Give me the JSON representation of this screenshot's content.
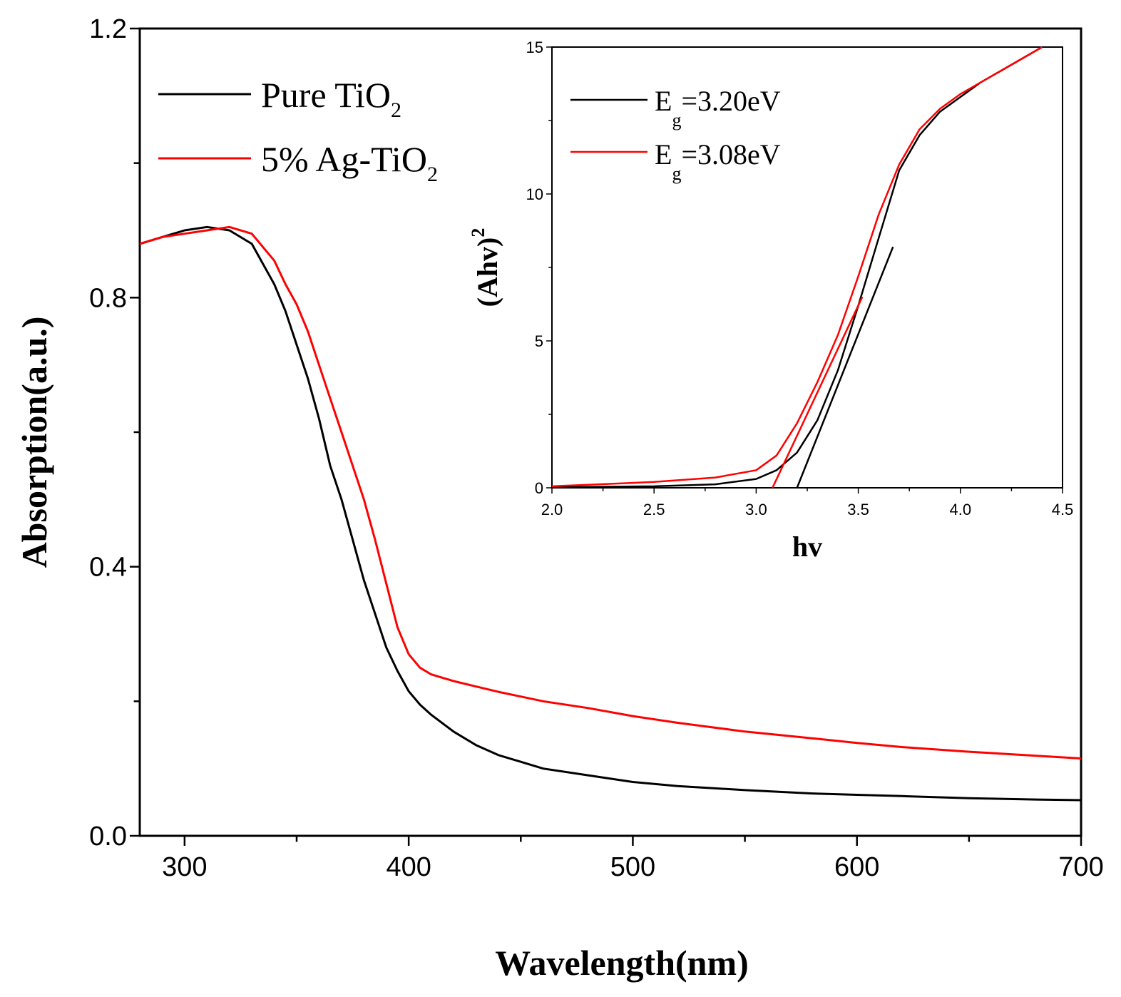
{
  "chart_data": [
    {
      "type": "line",
      "role": "main",
      "xlabel": "Wavelength(nm)",
      "ylabel": "Absorption(a.u.)",
      "xlim": [
        280,
        700
      ],
      "ylim": [
        0.0,
        1.2
      ],
      "xticks": [
        300,
        400,
        500,
        600,
        700
      ],
      "xtick_labels": [
        "300",
        "400",
        "500",
        "600",
        "700"
      ],
      "yticks": [
        0.0,
        0.4,
        0.8,
        1.2
      ],
      "ytick_labels": [
        "0.0",
        "0.4",
        "0.8",
        "1.2"
      ],
      "legend": {
        "position": "top-left",
        "entries": [
          {
            "base": "Pure TiO",
            "subscript": "2",
            "color": "#000000"
          },
          {
            "base": "5% Ag-TiO",
            "subscript": "2",
            "color": "#ff0000"
          }
        ]
      },
      "series": [
        {
          "name": "Pure TiO2",
          "color": "#000000",
          "x": [
            280,
            290,
            300,
            310,
            320,
            330,
            340,
            345,
            350,
            355,
            360,
            365,
            370,
            375,
            380,
            385,
            390,
            395,
            400,
            405,
            410,
            420,
            430,
            440,
            450,
            460,
            480,
            500,
            520,
            550,
            580,
            600,
            620,
            650,
            680,
            700
          ],
          "y": [
            0.88,
            0.89,
            0.9,
            0.905,
            0.9,
            0.88,
            0.82,
            0.78,
            0.73,
            0.68,
            0.62,
            0.55,
            0.5,
            0.44,
            0.38,
            0.33,
            0.28,
            0.245,
            0.215,
            0.195,
            0.18,
            0.155,
            0.135,
            0.12,
            0.11,
            0.1,
            0.09,
            0.08,
            0.074,
            0.068,
            0.063,
            0.061,
            0.059,
            0.056,
            0.054,
            0.053
          ]
        },
        {
          "name": "5% Ag-TiO2",
          "color": "#ff0000",
          "x": [
            280,
            290,
            300,
            310,
            320,
            330,
            340,
            345,
            350,
            355,
            360,
            365,
            370,
            375,
            380,
            385,
            390,
            395,
            400,
            405,
            410,
            415,
            420,
            430,
            440,
            450,
            460,
            480,
            500,
            520,
            550,
            580,
            600,
            620,
            650,
            680,
            700
          ],
          "y": [
            0.88,
            0.89,
            0.895,
            0.9,
            0.905,
            0.895,
            0.855,
            0.82,
            0.79,
            0.75,
            0.7,
            0.65,
            0.6,
            0.55,
            0.5,
            0.44,
            0.375,
            0.31,
            0.27,
            0.25,
            0.24,
            0.235,
            0.23,
            0.222,
            0.214,
            0.207,
            0.2,
            0.19,
            0.178,
            0.168,
            0.155,
            0.145,
            0.138,
            0.132,
            0.125,
            0.119,
            0.115
          ]
        }
      ]
    },
    {
      "type": "line",
      "role": "inset",
      "xlabel": "hv",
      "ylabel_base": "(Ahv)",
      "ylabel_sup": "2",
      "xlim": [
        2.0,
        4.5
      ],
      "ylim": [
        0,
        15
      ],
      "xticks": [
        2.0,
        2.5,
        3.0,
        3.5,
        4.0,
        4.5
      ],
      "xtick_labels": [
        "2.0",
        "2.5",
        "3.0",
        "3.5",
        "4.0",
        "4.5"
      ],
      "yticks": [
        0,
        5,
        10,
        15
      ],
      "ytick_labels": [
        "0",
        "5",
        "10",
        "15"
      ],
      "legend": {
        "position": "top-left",
        "entries": [
          {
            "base": "E",
            "subscript": "g",
            "suffix": "=3.20eV",
            "color": "#000000"
          },
          {
            "base": "E",
            "subscript": "g",
            "suffix": "=3.08eV",
            "color": "#ff0000"
          }
        ]
      },
      "series": [
        {
          "name": "Pure TiO2",
          "color": "#000000",
          "x": [
            2.0,
            2.5,
            2.8,
            3.0,
            3.1,
            3.2,
            3.3,
            3.4,
            3.5,
            3.6,
            3.7,
            3.8,
            3.9,
            4.0,
            4.1,
            4.2,
            4.3,
            4.4
          ],
          "y": [
            0.02,
            0.05,
            0.12,
            0.3,
            0.6,
            1.2,
            2.3,
            4.0,
            6.2,
            8.5,
            10.8,
            12.0,
            12.8,
            13.3,
            13.8,
            14.2,
            14.6,
            15.0
          ],
          "bandgap_fit": {
            "x": [
              3.2,
              3.67
            ],
            "y": [
              0,
              8.2
            ]
          }
        },
        {
          "name": "5% Ag-TiO2",
          "color": "#ff0000",
          "x": [
            2.0,
            2.5,
            2.8,
            3.0,
            3.1,
            3.2,
            3.3,
            3.4,
            3.5,
            3.6,
            3.7,
            3.8,
            3.9,
            4.0,
            4.1,
            4.2,
            4.3,
            4.4
          ],
          "y": [
            0.05,
            0.2,
            0.35,
            0.6,
            1.1,
            2.2,
            3.6,
            5.2,
            7.2,
            9.3,
            11.0,
            12.2,
            12.9,
            13.4,
            13.8,
            14.2,
            14.6,
            15.0
          ],
          "bandgap_fit": {
            "x": [
              3.08,
              3.52
            ],
            "y": [
              0,
              6.5
            ]
          }
        }
      ]
    }
  ]
}
